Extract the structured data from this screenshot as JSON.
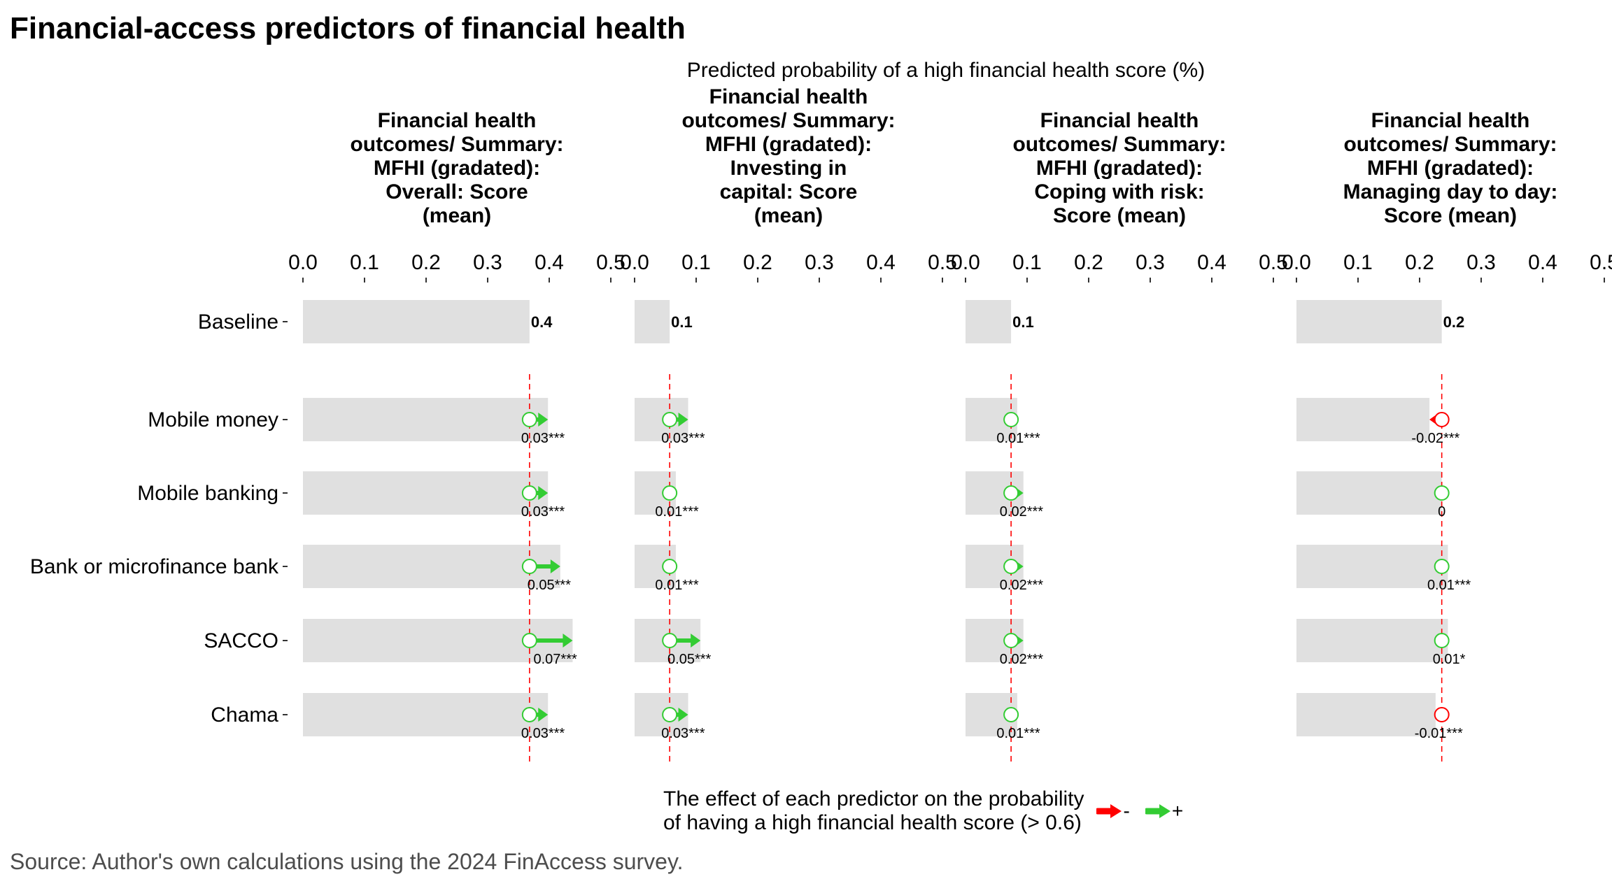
{
  "title": "Financial-access predictors of financial health",
  "supertitle": "Predicted probability of a high financial health score (%)",
  "caption": "Source: Author's own calculations using the 2024 FinAccess survey.",
  "legend": {
    "title_line1": "The effect of each predictor on the probability",
    "title_line2": "of having a high financial health score (> 0.6)",
    "negative_label": "-",
    "positive_label": "+",
    "negative_color": "#ff0000",
    "positive_color": "#33cc33"
  },
  "colors": {
    "bar": "#e0e0e0",
    "baseline_line": "#ff0000",
    "positive": "#33cc33",
    "negative": "#ff0000"
  },
  "chart_data": {
    "type": "bar",
    "categories": [
      "Baseline",
      "Mobile money",
      "Mobile banking",
      "Bank or microfinance bank",
      "SACCO",
      "Chama"
    ],
    "xlim": [
      0,
      0.5
    ],
    "xticks": [
      0.0,
      0.1,
      0.2,
      0.3,
      0.4,
      0.5
    ],
    "xtick_labels": [
      "0.0",
      "0.1",
      "0.2",
      "0.3",
      "0.4",
      "0.5"
    ],
    "panels": [
      {
        "title_lines": [
          "Financial health",
          "outcomes/ Summary:",
          "MFHI (gradated):",
          "Overall: Score",
          "(mean)"
        ],
        "baseline": 0.368,
        "baseline_label": "0.4",
        "effects": [
          0.03,
          0.03,
          0.05,
          0.07,
          0.03
        ],
        "effect_labels": [
          "0.03***",
          "0.03***",
          "0.05***",
          "0.07***",
          "0.03***"
        ]
      },
      {
        "title_lines": [
          "Financial health",
          "outcomes/ Summary:",
          "MFHI (gradated):",
          "Investing in",
          "capital: Score",
          "(mean)"
        ],
        "baseline": 0.057,
        "baseline_label": "0.1",
        "effects": [
          0.03,
          0.01,
          0.01,
          0.05,
          0.03
        ],
        "effect_labels": [
          "0.03***",
          "0.01***",
          "0.01***",
          "0.05***",
          "0.03***"
        ]
      },
      {
        "title_lines": [
          "Financial health",
          "outcomes/ Summary:",
          "MFHI (gradated):",
          "Coping with risk:",
          "Score (mean)"
        ],
        "baseline": 0.074,
        "baseline_label": "0.1",
        "effects": [
          0.01,
          0.02,
          0.02,
          0.02,
          0.01
        ],
        "effect_labels": [
          "0.01***",
          "0.02***",
          "0.02***",
          "0.02***",
          "0.01***"
        ]
      },
      {
        "title_lines": [
          "Financial health",
          "outcomes/ Summary:",
          "MFHI (gradated):",
          "Managing day to day:",
          "Score (mean)"
        ],
        "baseline": 0.236,
        "baseline_label": "0.2",
        "effects": [
          -0.02,
          0,
          0.01,
          0.01,
          -0.01
        ],
        "effect_labels": [
          "-0.02***",
          "0",
          "0.01***",
          "0.01*",
          "-0.01***"
        ]
      }
    ]
  }
}
